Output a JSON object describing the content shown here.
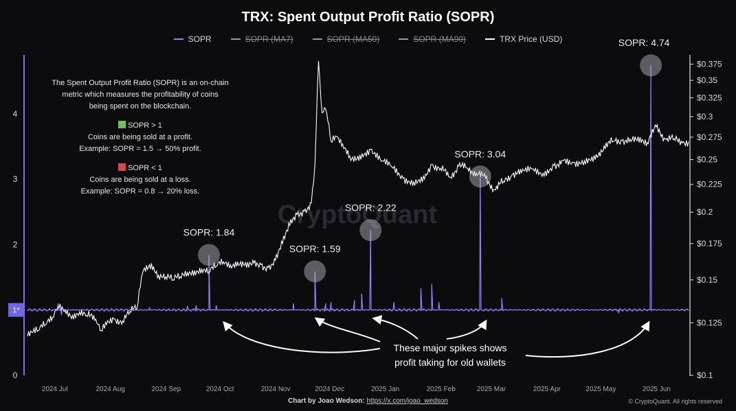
{
  "chart_data": {
    "type": "line",
    "title": "TRX: Spent Output Profit Ratio (SOPR)",
    "legend_placement": "top-center",
    "grid": false,
    "series": [
      {
        "name": "SOPR",
        "axis": "left",
        "color": "#8b84ff",
        "visible": true
      },
      {
        "name": "SOPR (MA7)",
        "axis": "left",
        "color": "#9a9aa0",
        "visible": false
      },
      {
        "name": "SOPR (MA50)",
        "axis": "left",
        "color": "#9a9aa0",
        "visible": false
      },
      {
        "name": "SOPR (MA90)",
        "axis": "left",
        "color": "#9a9aa0",
        "visible": false
      },
      {
        "name": "TRX Price (USD)",
        "axis": "right",
        "color": "#ffffff",
        "visible": true
      }
    ],
    "x_ticks": [
      "2024 Jul",
      "2024 Aug",
      "2024 Sep",
      "2024 Oct",
      "2024 Nov",
      "2024 Dec",
      "2025 Jan",
      "2025 Feb",
      "2025 Mar",
      "2025 Apr",
      "2025 May",
      "2025 Jun"
    ],
    "x_range": [
      "2024-06-25",
      "2025-06-28"
    ],
    "y_left": {
      "ticks": [
        "0",
        "2",
        "3",
        "4"
      ],
      "range": [
        0,
        4.9
      ],
      "reference": {
        "value": 1,
        "label": "1*"
      }
    },
    "y_right": {
      "scale": "log",
      "range": [
        0.1,
        0.39
      ],
      "ticks": [
        "$0.1",
        "$0.125",
        "$0.15",
        "$0.175",
        "$0.2",
        "$0.225",
        "$0.25",
        "$0.275",
        "$0.3",
        "$0.325",
        "$0.35",
        "$0.375"
      ]
    },
    "price_points": [
      [
        "2024-06-25",
        0.118
      ],
      [
        "2024-07-01",
        0.121
      ],
      [
        "2024-07-05",
        0.124
      ],
      [
        "2024-07-09",
        0.128
      ],
      [
        "2024-07-12",
        0.134
      ],
      [
        "2024-07-16",
        0.132
      ],
      [
        "2024-07-20",
        0.129
      ],
      [
        "2024-07-24",
        0.131
      ],
      [
        "2024-07-28",
        0.129
      ],
      [
        "2024-08-02",
        0.127
      ],
      [
        "2024-08-05",
        0.121
      ],
      [
        "2024-08-08",
        0.124
      ],
      [
        "2024-08-12",
        0.127
      ],
      [
        "2024-08-17",
        0.126
      ],
      [
        "2024-08-21",
        0.131
      ],
      [
        "2024-08-25",
        0.133
      ],
      [
        "2024-08-28",
        0.154
      ],
      [
        "2024-09-02",
        0.161
      ],
      [
        "2024-09-06",
        0.153
      ],
      [
        "2024-09-10",
        0.152
      ],
      [
        "2024-09-14",
        0.15
      ],
      [
        "2024-09-18",
        0.152
      ],
      [
        "2024-09-22",
        0.155
      ],
      [
        "2024-09-26",
        0.156
      ],
      [
        "2024-09-30",
        0.157
      ],
      [
        "2024-10-04",
        0.155
      ],
      [
        "2024-10-08",
        0.159
      ],
      [
        "2024-10-12",
        0.162
      ],
      [
        "2024-10-16",
        0.16
      ],
      [
        "2024-10-20",
        0.162
      ],
      [
        "2024-10-25",
        0.158
      ],
      [
        "2024-10-29",
        0.161
      ],
      [
        "2024-11-02",
        0.16
      ],
      [
        "2024-11-06",
        0.158
      ],
      [
        "2024-11-10",
        0.163
      ],
      [
        "2024-11-14",
        0.175
      ],
      [
        "2024-11-18",
        0.189
      ],
      [
        "2024-11-22",
        0.198
      ],
      [
        "2024-11-26",
        0.201
      ],
      [
        "2024-11-30",
        0.208
      ],
      [
        "2024-12-02",
        0.245
      ],
      [
        "2024-12-04",
        0.38
      ],
      [
        "2024-12-06",
        0.305
      ],
      [
        "2024-12-08",
        0.31
      ],
      [
        "2024-12-11",
        0.27
      ],
      [
        "2024-12-14",
        0.276
      ],
      [
        "2024-12-18",
        0.262
      ],
      [
        "2024-12-22",
        0.249
      ],
      [
        "2024-12-27",
        0.255
      ],
      [
        "2025-01-02",
        0.261
      ],
      [
        "2025-01-08",
        0.248
      ],
      [
        "2025-01-14",
        0.242
      ],
      [
        "2025-01-20",
        0.231
      ],
      [
        "2025-01-26",
        0.228
      ],
      [
        "2025-02-01",
        0.23
      ],
      [
        "2025-02-05",
        0.245
      ],
      [
        "2025-02-10",
        0.241
      ],
      [
        "2025-02-15",
        0.232
      ],
      [
        "2025-02-20",
        0.243
      ],
      [
        "2025-02-25",
        0.241
      ],
      [
        "2025-03-02",
        0.236
      ],
      [
        "2025-03-07",
        0.231
      ],
      [
        "2025-03-12",
        0.22
      ],
      [
        "2025-03-17",
        0.228
      ],
      [
        "2025-03-22",
        0.235
      ],
      [
        "2025-03-27",
        0.236
      ],
      [
        "2025-04-02",
        0.24
      ],
      [
        "2025-04-08",
        0.236
      ],
      [
        "2025-04-14",
        0.244
      ],
      [
        "2025-04-19",
        0.249
      ],
      [
        "2025-04-25",
        0.247
      ],
      [
        "2025-05-01",
        0.249
      ],
      [
        "2025-05-07",
        0.25
      ],
      [
        "2025-05-12",
        0.265
      ],
      [
        "2025-05-17",
        0.27
      ],
      [
        "2025-05-22",
        0.271
      ],
      [
        "2025-05-27",
        0.27
      ],
      [
        "2025-06-01",
        0.275
      ],
      [
        "2025-06-05",
        0.269
      ],
      [
        "2025-06-10",
        0.287
      ],
      [
        "2025-06-15",
        0.273
      ],
      [
        "2025-06-20",
        0.273
      ],
      [
        "2025-06-25",
        0.27
      ],
      [
        "2025-06-28",
        0.27
      ]
    ],
    "sopr_spikes": [
      [
        "2024-07-12",
        1.1
      ],
      [
        "2024-07-14",
        0.92
      ],
      [
        "2024-09-01",
        1.04
      ],
      [
        "2024-09-22",
        1.06
      ],
      [
        "2024-09-27",
        1.07
      ],
      [
        "2024-10-04",
        1.84
      ],
      [
        "2024-10-08",
        1.07
      ],
      [
        "2024-11-20",
        1.1
      ],
      [
        "2024-12-02",
        1.59
      ],
      [
        "2024-12-08",
        1.1
      ],
      [
        "2024-12-11",
        1.12
      ],
      [
        "2024-12-24",
        1.15
      ],
      [
        "2024-12-28",
        1.25
      ],
      [
        "2025-01-02",
        2.22
      ],
      [
        "2025-01-15",
        1.12
      ],
      [
        "2025-01-30",
        1.33
      ],
      [
        "2025-02-05",
        1.4
      ],
      [
        "2025-02-09",
        1.12
      ],
      [
        "2025-03-04",
        3.04
      ],
      [
        "2025-03-16",
        1.18
      ],
      [
        "2025-05-20",
        0.95
      ],
      [
        "2025-06-07",
        4.74
      ]
    ],
    "annotations": [
      "SOPR: 1.84",
      "SOPR: 1.59",
      "SOPR: 2.22",
      "SOPR: 3.04",
      "SOPR: 4.74"
    ],
    "annotation_points": [
      [
        "2024-10-04",
        1.84
      ],
      [
        "2024-12-02",
        1.59
      ],
      [
        "2025-01-02",
        2.22
      ],
      [
        "2025-03-04",
        3.04
      ],
      [
        "2025-06-07",
        4.74
      ]
    ],
    "callout_lines": [
      "These major spikes shows",
      "profit taking for old wallets"
    ],
    "explainer": {
      "intro": [
        "The Spent Output Profit Ratio (SOPR) is an on-chain",
        "metric which measures the profitability of coins",
        "being spent on the blockchain."
      ],
      "profit": {
        "label": "SOPR > 1",
        "color": "#6fbf5a",
        "lines": [
          "Coins are being sold at a profit.",
          "Example: SOPR = 1.5 → 50% profit."
        ]
      },
      "loss": {
        "label": "SOPR < 1",
        "color": "#e04545",
        "lines": [
          "Coins are being sold at a loss.",
          "Example: SOPR = 0.8 → 20% loss."
        ]
      }
    },
    "watermark": "CryptoQuant",
    "footer": {
      "prefix": "Chart by Joao Wedson:",
      "link": "https://x.com/joao_wedson"
    },
    "copyright": "© CryptoQuant. All rights reserved"
  }
}
